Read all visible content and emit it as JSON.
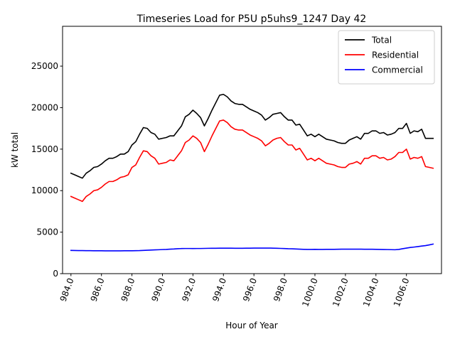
{
  "chart_data": {
    "type": "line",
    "title": "Timeseries Load for P5U p5uhs9_1247  Day 42",
    "xlabel": "Hour of Year",
    "ylabel": "kW total",
    "xlim": [
      983.45,
      1008.3
    ],
    "ylim": [
      0,
      29800
    ],
    "xticks": [
      984,
      986,
      988,
      990,
      992,
      994,
      996,
      998,
      1000,
      1002,
      1004,
      1006
    ],
    "xtick_labels": [
      "984.0",
      "986.0",
      "988.0",
      "990.0",
      "992.0",
      "994.0",
      "996.0",
      "998.0",
      "1000.0",
      "1002.0",
      "1004.0",
      "1006.0"
    ],
    "yticks": [
      0,
      5000,
      10000,
      15000,
      20000,
      25000
    ],
    "ytick_labels": [
      "0",
      "5000",
      "10000",
      "15000",
      "20000",
      "25000"
    ],
    "grid": false,
    "legend_position": "top-right",
    "x": [
      984.0,
      984.25,
      984.5,
      984.75,
      985.0,
      985.25,
      985.5,
      985.75,
      986.0,
      986.25,
      986.5,
      986.75,
      987.0,
      987.25,
      987.5,
      987.75,
      988.0,
      988.25,
      988.5,
      988.75,
      989.0,
      989.25,
      989.5,
      989.75,
      990.0,
      990.25,
      990.5,
      990.75,
      991.0,
      991.25,
      991.5,
      991.75,
      992.0,
      992.25,
      992.5,
      992.75,
      993.0,
      993.25,
      993.5,
      993.75,
      994.0,
      994.25,
      994.5,
      994.75,
      995.0,
      995.25,
      995.5,
      995.75,
      996.0,
      996.25,
      996.5,
      996.75,
      997.0,
      997.25,
      997.5,
      997.75,
      998.0,
      998.25,
      998.5,
      998.75,
      999.0,
      999.25,
      999.5,
      999.75,
      1000.0,
      1000.25,
      1000.5,
      1000.75,
      1001.0,
      1001.25,
      1001.5,
      1001.75,
      1002.0,
      1002.25,
      1002.5,
      1002.75,
      1003.0,
      1003.25,
      1003.5,
      1003.75,
      1004.0,
      1004.25,
      1004.5,
      1004.75,
      1005.0,
      1005.25,
      1005.5,
      1005.75,
      1006.0,
      1006.25,
      1006.5,
      1006.75,
      1007.0,
      1007.25,
      1007.5,
      1007.75
    ],
    "series": [
      {
        "name": "Total",
        "color": "#000000",
        "values": [
          12100,
          11900,
          11700,
          11500,
          12100,
          12400,
          12800,
          12900,
          13200,
          13600,
          13900,
          13900,
          14100,
          14400,
          14400,
          14700,
          15500,
          15900,
          16800,
          17600,
          17500,
          17000,
          16800,
          16200,
          16300,
          16400,
          16600,
          16600,
          17200,
          17800,
          18900,
          19200,
          19700,
          19300,
          18800,
          17800,
          18700,
          19700,
          20600,
          21500,
          21600,
          21300,
          20800,
          20500,
          20400,
          20400,
          20100,
          19800,
          19600,
          19400,
          19100,
          18500,
          18800,
          19200,
          19300,
          19400,
          18900,
          18500,
          18500,
          17900,
          18000,
          17300,
          16600,
          16800,
          16500,
          16800,
          16500,
          16200,
          16100,
          16000,
          15800,
          15700,
          15700,
          16100,
          16300,
          16500,
          16200,
          16900,
          16900,
          17200,
          17200,
          16900,
          17000,
          16700,
          16800,
          17000,
          17500,
          17500,
          18100,
          16900,
          17200,
          17100,
          17400,
          16300,
          16300,
          16300
        ]
      },
      {
        "name": "Residential",
        "color": "#ff0000",
        "values": [
          9300,
          9100,
          8900,
          8700,
          9300,
          9600,
          10000,
          10100,
          10400,
          10800,
          11100,
          11100,
          11300,
          11600,
          11700,
          11900,
          12800,
          13100,
          14000,
          14800,
          14700,
          14200,
          13900,
          13200,
          13300,
          13400,
          13700,
          13600,
          14200,
          14800,
          15800,
          16100,
          16600,
          16300,
          15800,
          14700,
          15600,
          16600,
          17500,
          18400,
          18500,
          18200,
          17700,
          17400,
          17300,
          17300,
          17000,
          16700,
          16500,
          16300,
          16000,
          15400,
          15700,
          16100,
          16300,
          16400,
          15900,
          15500,
          15500,
          14900,
          15100,
          14400,
          13700,
          13900,
          13600,
          13900,
          13600,
          13300,
          13200,
          13100,
          12900,
          12800,
          12800,
          13200,
          13300,
          13500,
          13200,
          13900,
          13900,
          14200,
          14200,
          13900,
          14000,
          13700,
          13800,
          14100,
          14600,
          14600,
          15000,
          13800,
          14000,
          13900,
          14100,
          12900,
          12800,
          12700
        ]
      },
      {
        "name": "Commercial",
        "color": "#0000ff",
        "values": [
          2800,
          2790,
          2780,
          2780,
          2770,
          2770,
          2760,
          2760,
          2760,
          2750,
          2750,
          2750,
          2750,
          2750,
          2760,
          2760,
          2760,
          2770,
          2780,
          2800,
          2820,
          2840,
          2860,
          2880,
          2900,
          2920,
          2950,
          2970,
          3000,
          3020,
          3030,
          3030,
          3020,
          3030,
          3030,
          3040,
          3050,
          3060,
          3060,
          3070,
          3070,
          3070,
          3070,
          3060,
          3060,
          3060,
          3070,
          3070,
          3080,
          3080,
          3080,
          3080,
          3080,
          3070,
          3060,
          3040,
          3020,
          3000,
          2990,
          2970,
          2950,
          2930,
          2920,
          2920,
          2930,
          2920,
          2920,
          2930,
          2930,
          2930,
          2940,
          2950,
          2950,
          2950,
          2950,
          2950,
          2950,
          2940,
          2940,
          2940,
          2930,
          2920,
          2910,
          2900,
          2890,
          2880,
          2920,
          3000,
          3080,
          3150,
          3200,
          3260,
          3320,
          3380,
          3460,
          3560
        ]
      }
    ]
  }
}
